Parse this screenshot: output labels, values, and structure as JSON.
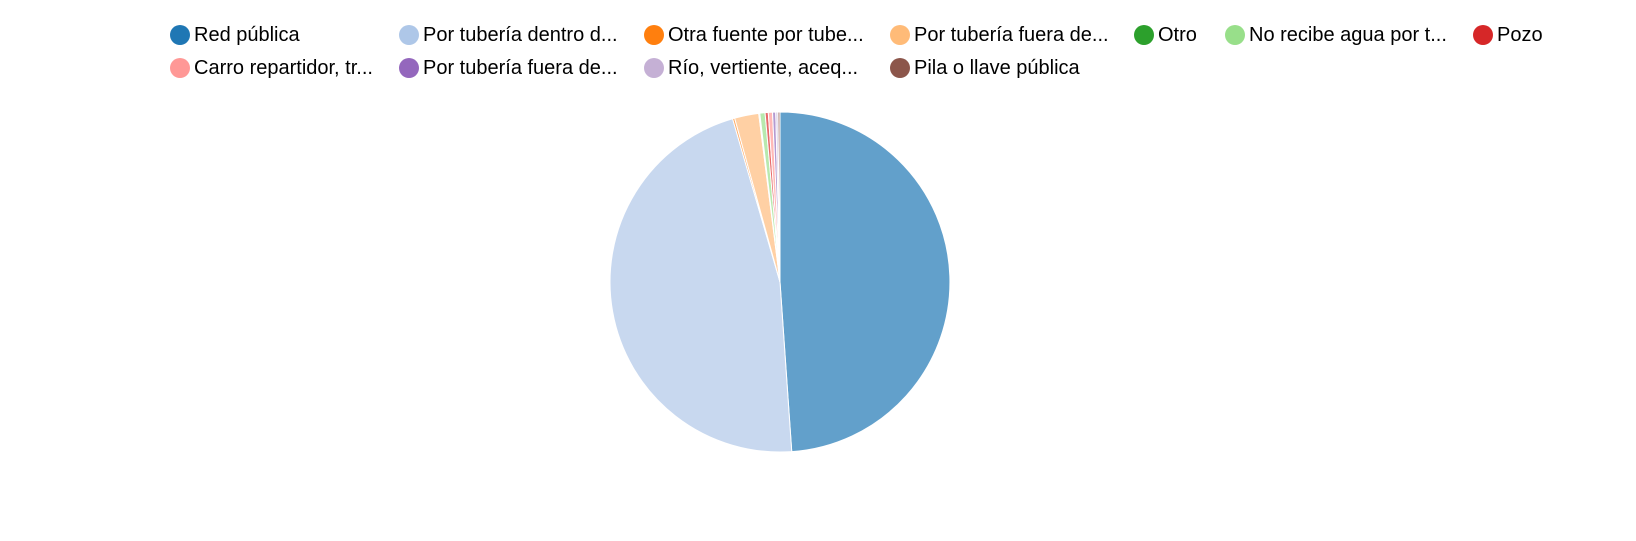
{
  "chart_data": {
    "type": "pie",
    "legend_placement": "top",
    "categories": [
      "Red pública",
      "Por tubería dentro d...",
      "Otra fuente por tube...",
      "Por tubería fuera de...",
      "Otro",
      "No recibe agua por t...",
      "Pozo",
      "Carro repartidor, tr...",
      "Por tubería fuera de...",
      "Río, vertiente, aceq...",
      "Pila o llave pública"
    ],
    "legend_colors": [
      "#1f77b4",
      "#aec7e8",
      "#ff7f0e",
      "#ffbb78",
      "#2ca02c",
      "#98df8a",
      "#d62728",
      "#ff9896",
      "#9467bd",
      "#c5b0d5",
      "#8c564b"
    ],
    "slice_colors": [
      "#62a0cb",
      "#c8d8ef",
      "#ffab66",
      "#ffd0a4",
      "#72be72",
      "#b8e9ae",
      "#e66b6b",
      "#ffb9b7",
      "#b49ad0",
      "#d8cae4",
      "#b08a82"
    ],
    "values": [
      48.9,
      46.6,
      0.2,
      2.3,
      0.1,
      0.5,
      0.3,
      0.4,
      0.3,
      0.2,
      0.2
    ]
  }
}
